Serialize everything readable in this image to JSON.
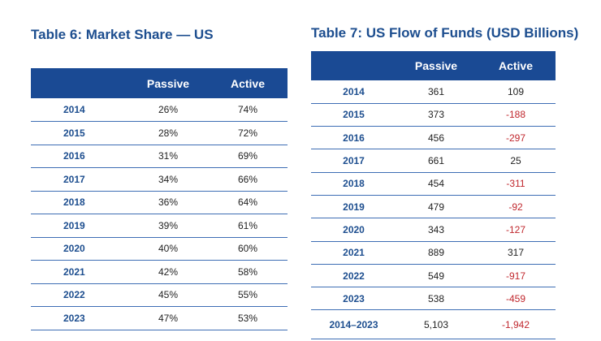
{
  "table6": {
    "title": "Table 6: Market Share — US",
    "headers": [
      "",
      "Passive",
      "Active"
    ],
    "rows": [
      {
        "year": "2014",
        "passive": "26%",
        "active": "74%"
      },
      {
        "year": "2015",
        "passive": "28%",
        "active": "72%"
      },
      {
        "year": "2016",
        "passive": "31%",
        "active": "69%"
      },
      {
        "year": "2017",
        "passive": "34%",
        "active": "66%"
      },
      {
        "year": "2018",
        "passive": "36%",
        "active": "64%"
      },
      {
        "year": "2019",
        "passive": "39%",
        "active": "61%"
      },
      {
        "year": "2020",
        "passive": "40%",
        "active": "60%"
      },
      {
        "year": "2021",
        "passive": "42%",
        "active": "58%"
      },
      {
        "year": "2022",
        "passive": "45%",
        "active": "55%"
      },
      {
        "year": "2023",
        "passive": "47%",
        "active": "53%"
      }
    ]
  },
  "table7": {
    "title": "Table 7: US Flow of Funds (USD Billions)",
    "headers": [
      "",
      "Passive",
      "Active"
    ],
    "rows": [
      {
        "year": "2014",
        "passive": "361",
        "active": "109"
      },
      {
        "year": "2015",
        "passive": "373",
        "active": "-188"
      },
      {
        "year": "2016",
        "passive": "456",
        "active": "-297"
      },
      {
        "year": "2017",
        "passive": "661",
        "active": "25"
      },
      {
        "year": "2018",
        "passive": "454",
        "active": "-311"
      },
      {
        "year": "2019",
        "passive": "479",
        "active": "-92"
      },
      {
        "year": "2020",
        "passive": "343",
        "active": "-127"
      },
      {
        "year": "2021",
        "passive": "889",
        "active": "317"
      },
      {
        "year": "2022",
        "passive": "549",
        "active": "-917"
      },
      {
        "year": "2023",
        "passive": "538",
        "active": "-459"
      }
    ],
    "total": {
      "year": "2014–2023",
      "passive": "5,103",
      "active": "-1,942"
    }
  },
  "colors": {
    "header_bg": "#1a4a94",
    "title": "#1d4e8f",
    "negative": "#c0272d",
    "rule": "#3d6db4"
  }
}
